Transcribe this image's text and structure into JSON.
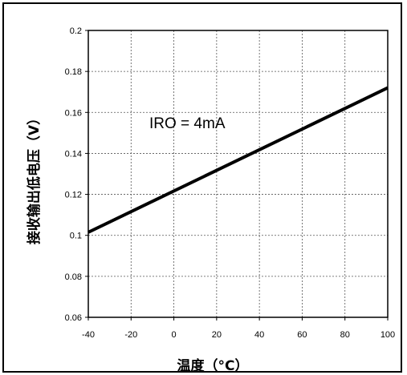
{
  "chart_data": {
    "type": "line",
    "title": "",
    "xlabel": "温度（°C）",
    "ylabel": "接收输出低电压（V）",
    "xlim": [
      -40,
      100
    ],
    "ylim": [
      0.06,
      0.2
    ],
    "x_ticks": [
      "-40",
      "-20",
      "0",
      "20",
      "40",
      "60",
      "80",
      "100"
    ],
    "y_ticks": [
      "0.06",
      "0.08",
      "0.1",
      "0.12",
      "0.14",
      "0.16",
      "0.18",
      "0.2"
    ],
    "grid": true,
    "series": [
      {
        "x": [
          -40,
          100
        ],
        "y": [
          0.1015,
          0.172
        ]
      }
    ],
    "annotation": "IRO = 4mA",
    "line_color": "#000000"
  }
}
